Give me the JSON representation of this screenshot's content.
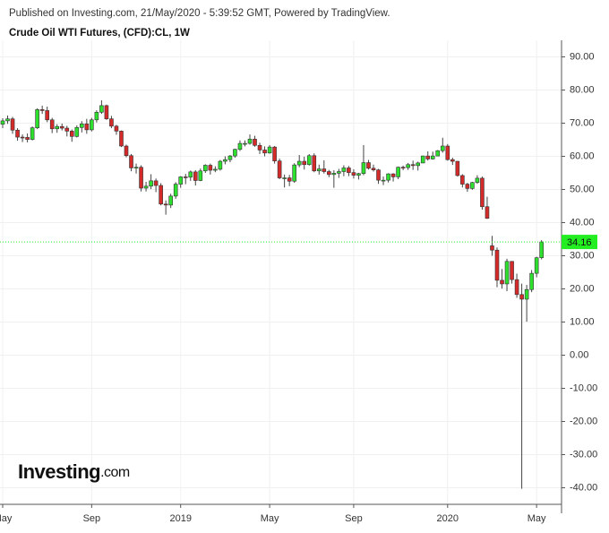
{
  "header": {
    "published": "Published on Investing.com, 21/May/2020 - 5:39:52 GMT, Powered by TradingView."
  },
  "logo": {
    "brand": "Investing",
    "suffix": ".com"
  },
  "chart_data": {
    "type": "candlestick",
    "title": "Crude Oil WTI Futures, (CFD):CL, 1W",
    "categories": [
      "May",
      null,
      null,
      null,
      null,
      null,
      null,
      null,
      null,
      null,
      null,
      null,
      null,
      null,
      null,
      null,
      null,
      null,
      "Sep",
      null,
      null,
      null,
      null,
      null,
      null,
      null,
      null,
      null,
      null,
      null,
      null,
      null,
      null,
      null,
      null,
      null,
      "2019",
      null,
      null,
      null,
      null,
      null,
      null,
      null,
      null,
      null,
      null,
      null,
      null,
      null,
      null,
      null,
      null,
      null,
      "May",
      null,
      null,
      null,
      null,
      null,
      null,
      null,
      null,
      null,
      null,
      null,
      null,
      null,
      null,
      null,
      null,
      "Sep",
      null,
      null,
      null,
      null,
      null,
      null,
      null,
      null,
      null,
      null,
      null,
      null,
      null,
      null,
      null,
      null,
      null,
      null,
      "2020",
      null,
      null,
      null,
      null,
      null,
      null,
      null,
      null,
      null,
      null,
      null,
      null,
      null,
      null,
      null,
      null,
      null,
      "May",
      null
    ],
    "open": [
      69.7,
      70.7,
      71.3,
      67.9,
      65.8,
      65.7,
      65.1,
      68.6,
      74.1,
      73.8,
      71.0,
      68.3,
      69.0,
      68.5,
      67.6,
      66.0,
      68.7,
      69.8,
      68.0,
      71.0,
      73.3,
      75.3,
      71.3,
      69.1,
      67.6,
      63.1,
      60.2,
      56.5,
      56.7,
      50.4,
      51.0,
      52.6,
      51.2,
      45.6,
      45.3,
      48.0,
      51.6,
      53.8,
      53.7,
      55.3,
      52.7,
      55.6,
      57.3,
      55.8,
      56.1,
      58.5,
      59.0,
      60.1,
      62.1,
      63.9,
      63.9,
      65.2,
      63.3,
      61.9,
      61.0,
      62.8,
      58.6,
      53.5,
      53.5,
      52.5,
      57.4,
      58.5,
      57.5,
      60.2,
      55.6,
      56.2,
      55.4,
      54.5,
      54.9,
      55.4,
      56.5,
      55.1,
      54.3,
      54.8,
      58.1,
      56.4,
      55.9,
      52.8,
      52.8,
      54.7,
      53.8,
      56.7,
      56.6,
      57.5,
      57.2,
      58.0,
      60.1,
      59.2,
      60.1,
      61.7,
      63.1,
      59.0,
      58.5,
      54.2,
      51.6,
      50.3,
      52.1,
      53.4,
      44.8,
      33.0,
      31.7,
      22.6,
      21.5,
      28.3,
      22.8,
      18.3,
      16.9,
      19.8,
      24.7,
      29.4
    ],
    "high": [
      71.5,
      72.3,
      71.9,
      68.5,
      66.6,
      66.9,
      69.0,
      74.5,
      75.3,
      75.0,
      71.6,
      69.7,
      69.9,
      69.2,
      68.1,
      69.3,
      70.6,
      71.3,
      71.6,
      73.9,
      76.9,
      75.6,
      72.2,
      69.5,
      67.8,
      63.5,
      60.7,
      57.8,
      57.3,
      52.3,
      54.6,
      53.3,
      51.9,
      46.7,
      48.7,
      52.2,
      54.0,
      54.7,
      55.7,
      55.8,
      56.3,
      57.6,
      57.8,
      57.0,
      58.9,
      60.0,
      60.4,
      62.3,
      64.8,
      64.8,
      66.6,
      66.2,
      64.1,
      63.0,
      63.4,
      63.1,
      59.3,
      54.5,
      54.4,
      57.9,
      60.4,
      59.9,
      60.7,
      60.9,
      57.5,
      58.8,
      55.9,
      55.8,
      56.2,
      57.3,
      57.1,
      56.1,
      55.0,
      63.4,
      58.9,
      57.5,
      56.2,
      53.9,
      54.9,
      54.9,
      56.9,
      57.2,
      58.0,
      58.7,
      58.4,
      60.2,
      61.5,
      61.4,
      61.9,
      65.6,
      63.7,
      59.6,
      58.6,
      54.6,
      52.0,
      52.3,
      54.3,
      53.9,
      47.8,
      36.0,
      32.5,
      26.0,
      29.1,
      28.4,
      24.6,
      21.6,
      21.2,
      25.7,
      29.7,
      34.7
    ],
    "low": [
      68.5,
      69.8,
      66.8,
      64.7,
      64.3,
      64.2,
      64.8,
      68.2,
      72.8,
      70.3,
      67.0,
      67.1,
      67.8,
      66.0,
      64.4,
      65.7,
      67.2,
      66.8,
      67.5,
      70.2,
      72.8,
      71.0,
      68.5,
      66.5,
      62.8,
      59.7,
      55.5,
      54.8,
      49.4,
      49.4,
      50.1,
      49.2,
      45.2,
      42.4,
      44.4,
      47.2,
      50.5,
      51.6,
      52.6,
      51.2,
      52.5,
      55.0,
      54.5,
      55.2,
      55.7,
      57.6,
      58.2,
      59.6,
      61.6,
      63.0,
      63.5,
      62.9,
      60.7,
      60.0,
      60.8,
      57.8,
      53.1,
      50.6,
      51.0,
      52.0,
      56.7,
      56.0,
      57.2,
      55.2,
      54.5,
      54.8,
      53.7,
      50.5,
      53.5,
      54.0,
      54.0,
      53.3,
      53.0,
      54.3,
      56.0,
      55.4,
      51.7,
      51.3,
      52.1,
      52.4,
      53.1,
      55.8,
      55.9,
      55.9,
      55.7,
      57.9,
      58.7,
      59.0,
      60.0,
      61.1,
      58.7,
      57.4,
      53.9,
      50.6,
      49.3,
      49.9,
      51.7,
      43.9,
      41.1,
      30.0,
      20.5,
      20.1,
      19.3,
      21.6,
      17.3,
      -40.3,
      10.1,
      19.0,
      23.5,
      28.9
    ],
    "close": [
      70.7,
      71.3,
      67.9,
      65.8,
      65.7,
      65.1,
      68.6,
      74.1,
      73.8,
      71.0,
      68.3,
      69.0,
      68.5,
      67.6,
      66.0,
      68.7,
      69.8,
      68.0,
      71.0,
      73.3,
      75.3,
      71.3,
      69.1,
      67.6,
      63.1,
      60.2,
      56.5,
      56.7,
      50.4,
      51.0,
      52.6,
      51.2,
      45.6,
      45.3,
      48.0,
      51.6,
      53.8,
      53.7,
      55.3,
      52.7,
      55.6,
      57.3,
      55.8,
      56.1,
      58.5,
      59.0,
      60.1,
      62.1,
      63.9,
      63.9,
      65.2,
      63.3,
      61.9,
      61.0,
      62.8,
      58.6,
      53.5,
      53.5,
      52.5,
      57.4,
      58.5,
      57.5,
      60.2,
      55.6,
      56.2,
      55.4,
      54.5,
      54.9,
      55.4,
      56.5,
      55.1,
      54.3,
      54.8,
      58.1,
      56.4,
      55.9,
      52.8,
      52.8,
      54.7,
      53.8,
      56.7,
      56.6,
      57.5,
      57.2,
      58.0,
      60.1,
      59.2,
      60.1,
      61.7,
      63.1,
      59.0,
      58.5,
      54.2,
      51.6,
      50.3,
      52.1,
      53.4,
      44.8,
      41.3,
      31.7,
      22.6,
      21.5,
      28.3,
      22.8,
      18.3,
      16.9,
      19.8,
      24.7,
      29.4,
      34.16
    ],
    "up_color": "#2ee02e",
    "down_color": "#d42a2a",
    "last_price_color": "#22ee22",
    "ylim": [
      -45,
      95
    ],
    "yticks": [
      {
        "value": 90,
        "label": "90.00"
      },
      {
        "value": 80,
        "label": "80.00"
      },
      {
        "value": 70,
        "label": "70.00"
      },
      {
        "value": 60,
        "label": "60.00"
      },
      {
        "value": 50,
        "label": "50.00"
      },
      {
        "value": 40,
        "label": "40.00"
      },
      {
        "value": 30,
        "label": "30.00"
      },
      {
        "value": 20,
        "label": "20.00"
      },
      {
        "value": 10,
        "label": "10.00"
      },
      {
        "value": 0,
        "label": "0.00"
      },
      {
        "value": -10,
        "label": "-10.00"
      },
      {
        "value": -20,
        "label": "-20.00"
      },
      {
        "value": -30,
        "label": "-30.00"
      },
      {
        "value": -40,
        "label": "-40.00"
      }
    ],
    "grid": true
  }
}
